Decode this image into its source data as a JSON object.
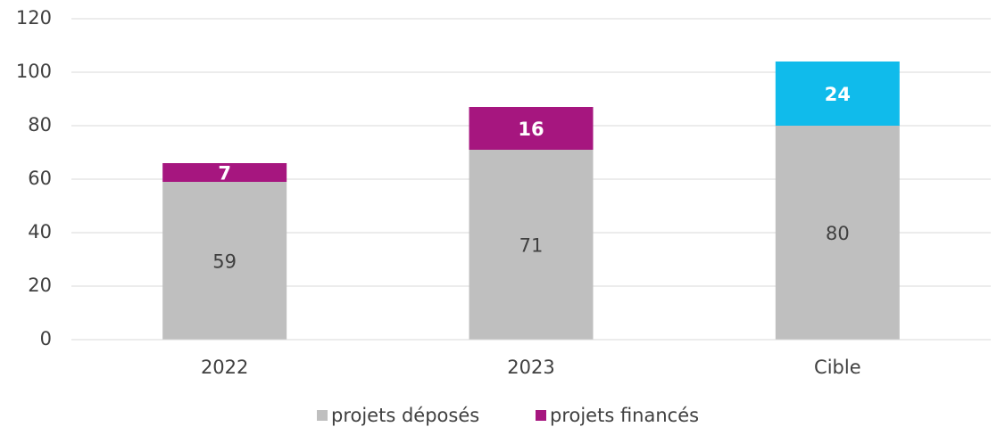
{
  "chart_data": {
    "type": "stacked_bar",
    "categories": [
      "2022",
      "2023",
      "Cible"
    ],
    "series": [
      {
        "name": "projets déposés",
        "color": "#bfbfbf",
        "values": [
          59,
          71,
          80
        ]
      },
      {
        "name": "projets financés",
        "color": "#a6167f",
        "point_colors": [
          "#a6167f",
          "#a6167f",
          "#10bbeb"
        ],
        "values": [
          7,
          16,
          24
        ]
      }
    ],
    "ylim": [
      0,
      120
    ],
    "yticks": [
      0,
      20,
      40,
      60,
      80,
      100,
      120
    ],
    "grid": true,
    "legend": "bottom"
  }
}
